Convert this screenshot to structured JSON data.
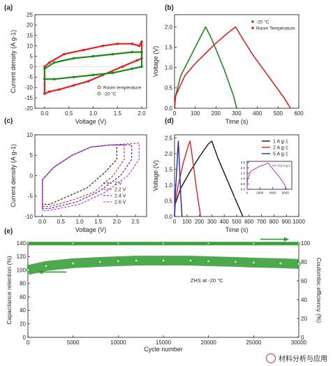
{
  "chart_data": [
    {
      "panel": "(a)",
      "type": "line",
      "xlabel": "Voltage (V)",
      "ylabel": "Current density (A g-1)",
      "xlim": [
        -0.2,
        2.1
      ],
      "ylim": [
        -20,
        25
      ],
      "xticks": [
        "0.0",
        "0.5",
        "1.0",
        "1.5",
        "2.0"
      ],
      "xtick_values": [
        0,
        0.5,
        1.0,
        1.5,
        2.0
      ],
      "yticks": [
        "-20",
        "-15",
        "-10",
        "-5",
        "0",
        "5",
        "10",
        "15",
        "20",
        "25"
      ],
      "ytick_values": [
        -20,
        -15,
        -10,
        -5,
        0,
        5,
        10,
        15,
        20,
        25
      ],
      "legend_position": "bottom-right",
      "series": [
        {
          "name": "Room temperature",
          "color": "#e02020",
          "x": [
            0.0,
            0.0,
            0.1,
            0.4,
            0.8,
            1.2,
            1.5,
            1.8,
            1.95,
            2.0,
            2.0,
            1.9,
            1.6,
            1.2,
            0.9,
            0.6,
            0.3,
            0.1,
            0.0,
            0.0
          ],
          "y": [
            -13,
            0,
            2,
            6,
            8,
            10,
            11,
            11,
            10,
            12,
            4,
            3,
            0,
            -4,
            -7,
            -9,
            -11,
            -12,
            -13,
            -13
          ]
        },
        {
          "name": "-20 °C",
          "color": "#1a8a1a",
          "x": [
            0.0,
            0.0,
            0.2,
            0.6,
            1.0,
            1.4,
            1.8,
            2.0,
            2.0,
            1.8,
            1.4,
            1.0,
            0.6,
            0.2,
            0.0
          ],
          "y": [
            -6,
            -1,
            2,
            4,
            5,
            6,
            7,
            7,
            0,
            -1,
            -3,
            -4,
            -5,
            -6,
            -6
          ]
        }
      ]
    },
    {
      "panel": "(b)",
      "type": "line",
      "xlabel": "Time (s)",
      "ylabel": "Voltage (V)",
      "xlim": [
        0,
        600
      ],
      "ylim": [
        0,
        2.3
      ],
      "xticks": [
        "0",
        "100",
        "200",
        "300",
        "400",
        "500",
        "600"
      ],
      "xtick_values": [
        0,
        100,
        200,
        300,
        400,
        500,
        600
      ],
      "yticks": [
        "0.0",
        "0.5",
        "1.0",
        "1.5",
        "2.0"
      ],
      "ytick_values": [
        0,
        0.5,
        1.0,
        1.5,
        2.0
      ],
      "legend_position": "top-right",
      "series": [
        {
          "name": "-20 °C",
          "color": "#1a8a1a",
          "x": [
            0,
            5,
            30,
            70,
            110,
            150,
            175,
            200,
            240,
            285,
            300
          ],
          "y": [
            0.0,
            0.3,
            0.8,
            1.2,
            1.6,
            2.0,
            1.75,
            1.45,
            0.95,
            0.3,
            0.0
          ]
        },
        {
          "name": "Room Temperature",
          "color": "#e02020",
          "x": [
            0,
            5,
            50,
            100,
            150,
            200,
            250,
            295,
            330,
            380,
            430,
            480,
            530,
            560
          ],
          "y": [
            0.0,
            0.3,
            0.8,
            1.1,
            1.35,
            1.6,
            1.82,
            2.0,
            1.7,
            1.3,
            0.95,
            0.6,
            0.25,
            0.0
          ]
        }
      ]
    },
    {
      "panel": "(c)",
      "type": "line",
      "xlabel": "Voltage (V)",
      "ylabel": "Current density (A g-1)",
      "xlim": [
        -0.2,
        2.8
      ],
      "ylim": [
        -10,
        10
      ],
      "xticks": [
        "0.0",
        "0.5",
        "1.0",
        "1.5",
        "2.0",
        "2.5"
      ],
      "xtick_values": [
        0,
        0.5,
        1.0,
        1.5,
        2.0,
        2.5
      ],
      "yticks": [
        "-10",
        "-5",
        "0",
        "5",
        "10"
      ],
      "ytick_values": [
        -10,
        -5,
        0,
        5,
        10
      ],
      "legend_position": "bottom-right",
      "series": [
        {
          "name": "2 V",
          "color": "#111111",
          "x": [
            0.0,
            0.0,
            0.3,
            0.8,
            1.3,
            1.8,
            2.0,
            2.0,
            1.7,
            1.2,
            0.7,
            0.2,
            0.0
          ],
          "y": [
            -7,
            -1,
            2,
            5,
            7,
            7.5,
            7.5,
            4,
            1,
            -3,
            -5,
            -7,
            -7
          ]
        },
        {
          "name": "2.2 V",
          "color": "#e02020",
          "x": [
            0.0,
            0.0,
            0.3,
            0.8,
            1.3,
            1.8,
            2.2,
            2.2,
            1.9,
            1.4,
            0.8,
            0.2,
            0.0
          ],
          "y": [
            -7.5,
            -1,
            2,
            5,
            7,
            7.5,
            7.5,
            4,
            0,
            -4,
            -6,
            -7.5,
            -7.5
          ]
        },
        {
          "name": "2.4 V",
          "color": "#2020d0",
          "x": [
            0.0,
            0.0,
            0.3,
            0.8,
            1.3,
            1.8,
            2.4,
            2.4,
            2.1,
            1.5,
            0.9,
            0.2,
            0.0
          ],
          "y": [
            -8,
            -1,
            2,
            5,
            7,
            7.5,
            7.5,
            4,
            0,
            -4,
            -6.5,
            -8,
            -8
          ]
        },
        {
          "name": "2.6 V",
          "color": "#d020d0",
          "x": [
            0.0,
            0.0,
            0.3,
            0.8,
            1.3,
            1.8,
            2.6,
            2.6,
            2.3,
            1.7,
            1.0,
            0.2,
            0.0
          ],
          "y": [
            -8.5,
            -1,
            2,
            5,
            7,
            7.5,
            8,
            4,
            0,
            -4,
            -7,
            -8.5,
            -8.5
          ]
        }
      ]
    },
    {
      "panel": "(d)",
      "type": "line",
      "xlabel": "Time (s)",
      "ylabel": "Voltage (V)",
      "xlim": [
        0,
        1000
      ],
      "ylim": [
        0,
        2.6
      ],
      "xticks": [
        "0",
        "100",
        "200",
        "300",
        "400",
        "500",
        "600",
        "700",
        "800",
        "900",
        "1000"
      ],
      "xtick_values": [
        0,
        100,
        200,
        300,
        400,
        500,
        600,
        700,
        800,
        900,
        1000
      ],
      "yticks": [
        "0.0",
        "0.5",
        "1.0",
        "1.5",
        "2.0",
        "2.5"
      ],
      "ytick_values": [
        0,
        0.5,
        1.0,
        1.5,
        2.0,
        2.5
      ],
      "legend_position": "top-right",
      "series": [
        {
          "name": "1 A g-1",
          "color": "#111111",
          "x": [
            0,
            5,
            50,
            120,
            200,
            270,
            300,
            350,
            420,
            490,
            550
          ],
          "y": [
            0.0,
            0.4,
            0.9,
            1.4,
            1.9,
            2.3,
            2.4,
            1.85,
            1.2,
            0.55,
            0.0
          ]
        },
        {
          "name": "2 A g-1",
          "color": "#e02020",
          "x": [
            0,
            3,
            30,
            70,
            110,
            125,
            150,
            180,
            210
          ],
          "y": [
            0.0,
            0.4,
            1.0,
            1.7,
            2.25,
            2.4,
            1.7,
            0.8,
            0.0
          ]
        },
        {
          "name": "5 A g-1",
          "color": "#2020d0",
          "x": [
            0,
            3,
            15,
            26,
            31,
            40,
            50,
            60
          ],
          "y": [
            0.0,
            0.5,
            1.3,
            2.1,
            2.4,
            1.6,
            0.7,
            0.0
          ]
        }
      ],
      "inset": {
        "legend": "0.2 A g-1",
        "color": "#a040c0",
        "xlim": [
          0,
          7000
        ],
        "ylim": [
          0,
          2.6
        ],
        "xticks": [
          "0",
          "2000",
          "4000",
          "6000"
        ],
        "xtick_values": [
          0,
          2000,
          4000,
          6000
        ],
        "yticks": [
          "0.0",
          "0.5",
          "1.0",
          "1.5",
          "2.0",
          "2.5"
        ],
        "ytick_values": [
          0,
          0.5,
          1.0,
          1.5,
          2.0,
          2.5
        ],
        "x": [
          0,
          50,
          500,
          1200,
          2000,
          2800,
          3300,
          4000,
          5000,
          5800,
          6200
        ],
        "y": [
          0.0,
          0.9,
          1.6,
          1.9,
          2.15,
          2.3,
          2.45,
          1.9,
          1.2,
          0.5,
          0.0
        ]
      }
    },
    {
      "panel": "(e)",
      "type": "scatter",
      "xlabel": "Cycle number",
      "ylabel": "Capacitance retention (%)",
      "y2label": "Coulombic efficiency (%)",
      "annotation": "ZHS at -20 °C",
      "xlim": [
        0,
        30000
      ],
      "ylim": [
        0,
        140
      ],
      "y2lim": [
        0,
        100
      ],
      "xticks": [
        "0",
        "5000",
        "10000",
        "15000",
        "20000",
        "25000",
        "30000"
      ],
      "xtick_values": [
        0,
        5000,
        10000,
        15000,
        20000,
        25000,
        30000
      ],
      "yticks": [
        "0",
        "20",
        "40",
        "60",
        "80",
        "100",
        "120",
        "140"
      ],
      "ytick_values": [
        0,
        20,
        40,
        60,
        80,
        100,
        120,
        140
      ],
      "y2ticks": [
        "0",
        "20",
        "40",
        "60",
        "80",
        "100"
      ],
      "y2tick_values": [
        0,
        20,
        40,
        60,
        80,
        100
      ],
      "series": [
        {
          "name": "Capacitance retention",
          "axis": "left",
          "color": "#2f9a2f",
          "x": [
            0,
            2000,
            5000,
            8000,
            10000,
            12000,
            15000,
            18000,
            20000,
            23000,
            25000,
            28000,
            30000
          ],
          "y": [
            100,
            106,
            110,
            112,
            113,
            114,
            114,
            114,
            113,
            112,
            111,
            110,
            109
          ]
        },
        {
          "name": "Coulombic efficiency",
          "axis": "right",
          "color": "#2f9a2f",
          "x": [
            0,
            5000,
            10000,
            15000,
            20000,
            25000,
            30000
          ],
          "y": [
            99.5,
            99.5,
            99.5,
            99.5,
            99.5,
            99.5,
            99.5
          ]
        }
      ]
    }
  ],
  "watermark": "材料分析与应用"
}
